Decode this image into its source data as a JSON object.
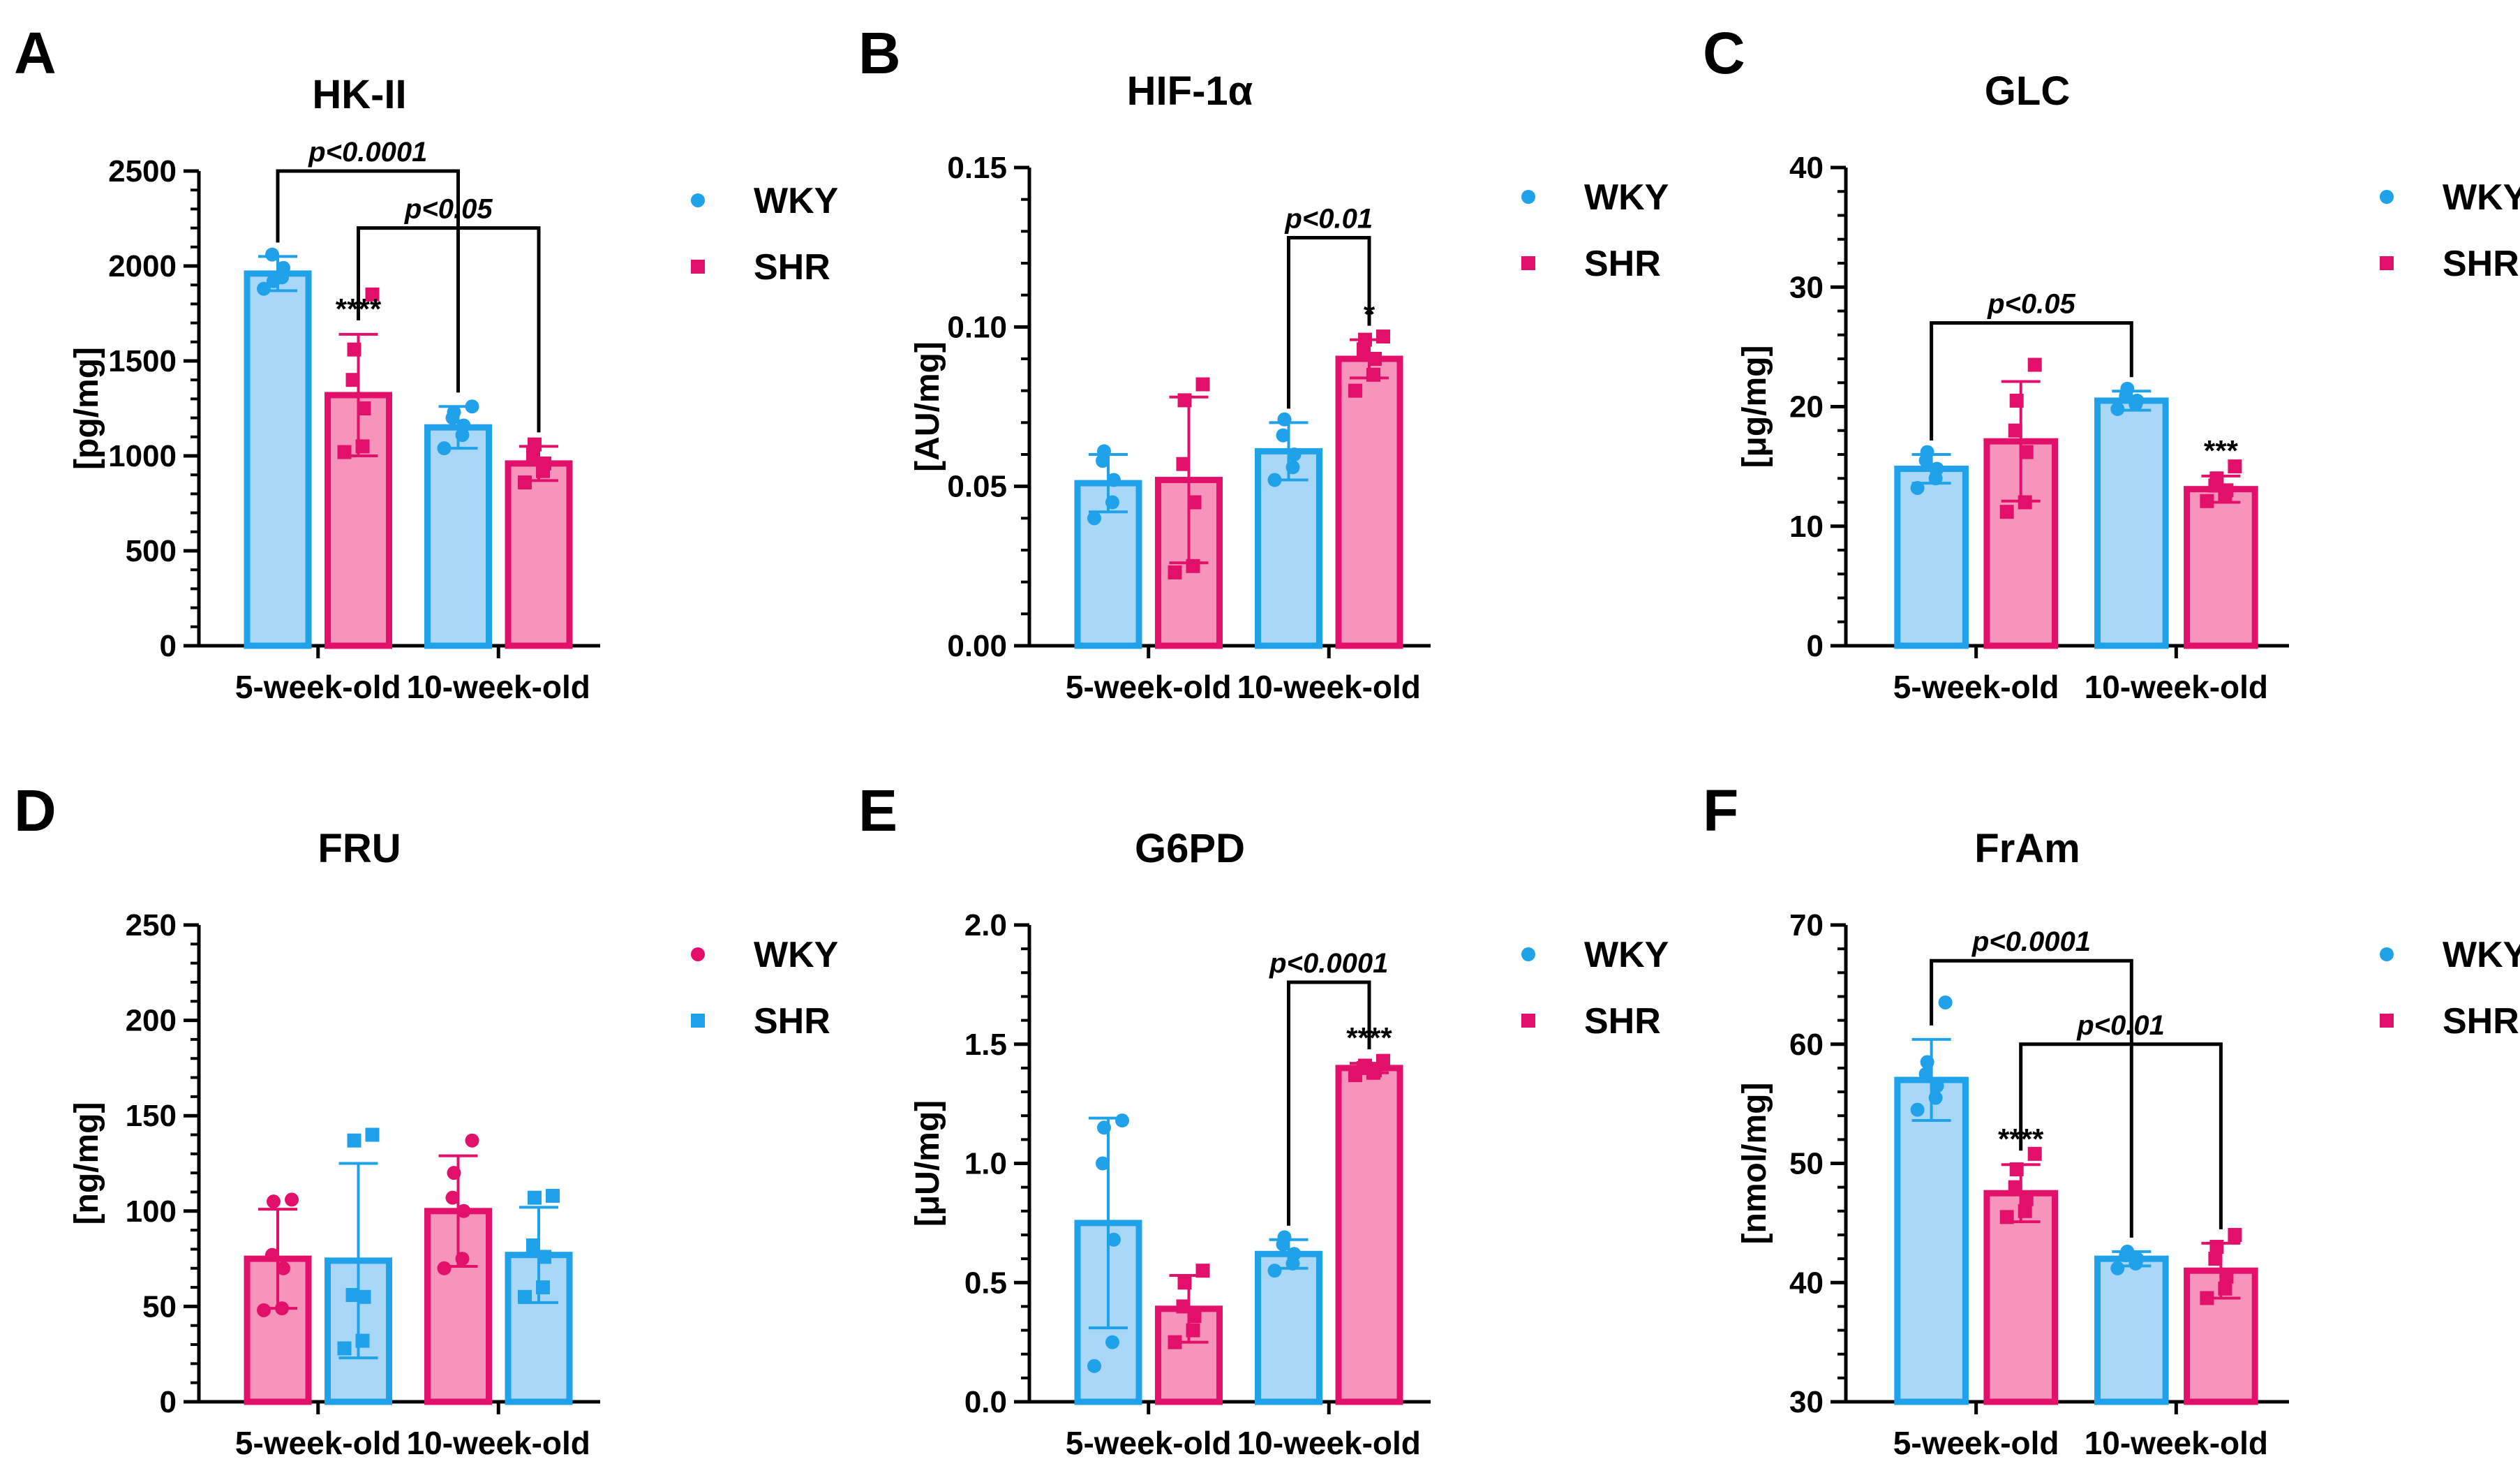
{
  "colors": {
    "wky_fill": "#a9d7f7",
    "wky_stroke": "#1fa2ea",
    "shr_fill": "#f794bb",
    "shr_stroke": "#e3106b"
  },
  "chart_data": [
    {
      "panel": "A",
      "type": "bar",
      "title": "HK-II",
      "ylabel": "[pg/mg]",
      "ylim": [
        0,
        2500
      ],
      "yticks": [
        "0",
        "500",
        "1000",
        "1500",
        "2000",
        "2500"
      ],
      "categories": [
        "5-week-old",
        "10-week-old"
      ],
      "legend": [
        "WKY",
        "SHR"
      ],
      "legend_position": "top-right",
      "series": [
        {
          "name": "WKY",
          "color": "blue",
          "marker": "circle",
          "values": [
            1960,
            1150
          ],
          "sd": [
            90,
            110
          ],
          "points": [
            [
              1880,
              1940,
              1990,
              2060,
              1920
            ],
            [
              1040,
              1110,
              1160,
              1200,
              1230,
              1260
            ]
          ]
        },
        {
          "name": "SHR",
          "color": "pink",
          "marker": "square",
          "values": [
            1320,
            960
          ],
          "sd": [
            320,
            90
          ],
          "points": [
            [
              1020,
              1050,
              1250,
              1400,
              1560,
              1850
            ],
            [
              860,
              920,
              960,
              1010,
              1060
            ]
          ]
        }
      ],
      "annotations": [
        {
          "type": "stars",
          "text": "****",
          "series": 1,
          "category": 0
        },
        {
          "type": "bracket",
          "text": "p<0.0001",
          "from": [
            0,
            0
          ],
          "to": [
            0,
            1
          ],
          "y": 2500
        },
        {
          "type": "bracket",
          "text": "p<0.05",
          "from": [
            1,
            0
          ],
          "to": [
            1,
            1
          ],
          "y": 2200
        }
      ]
    },
    {
      "panel": "B",
      "type": "bar",
      "title": "HIF-1α",
      "ylabel": "[AU/mg]",
      "ylim": [
        0,
        0.15
      ],
      "yticks": [
        "0.00",
        "0.05",
        "0.10",
        "0.15"
      ],
      "categories": [
        "5-week-old",
        "10-week-old"
      ],
      "legend": [
        "WKY",
        "SHR"
      ],
      "legend_position": "top-right",
      "series": [
        {
          "name": "WKY",
          "color": "blue",
          "marker": "circle",
          "values": [
            0.051,
            0.061
          ],
          "sd": [
            0.009,
            0.009
          ],
          "points": [
            [
              0.04,
              0.045,
              0.052,
              0.058,
              0.061
            ],
            [
              0.052,
              0.056,
              0.06,
              0.066,
              0.071
            ]
          ]
        },
        {
          "name": "SHR",
          "color": "pink",
          "marker": "square",
          "values": [
            0.052,
            0.09
          ],
          "sd": [
            0.026,
            0.006
          ],
          "points": [
            [
              0.023,
              0.025,
              0.045,
              0.057,
              0.077,
              0.082
            ],
            [
              0.08,
              0.085,
              0.09,
              0.093,
              0.096,
              0.097
            ]
          ]
        }
      ],
      "annotations": [
        {
          "type": "stars",
          "text": "*",
          "series": 1,
          "category": 1
        },
        {
          "type": "bracket",
          "text": "p<0.01",
          "from": [
            0,
            1
          ],
          "to": [
            1,
            1
          ],
          "y": 0.128
        }
      ]
    },
    {
      "panel": "C",
      "type": "bar",
      "title": "GLC",
      "ylabel": "[μg/mg]",
      "ylim": [
        0,
        40
      ],
      "yticks": [
        "0",
        "10",
        "20",
        "30",
        "40"
      ],
      "categories": [
        "5-week-old",
        "10-week-old"
      ],
      "legend": [
        "WKY",
        "SHR"
      ],
      "legend_position": "top-right",
      "series": [
        {
          "name": "WKY",
          "color": "blue",
          "marker": "circle",
          "values": [
            14.8,
            20.5
          ],
          "sd": [
            1.2,
            0.8
          ],
          "points": [
            [
              13.2,
              14.0,
              14.8,
              15.5,
              16.2
            ],
            [
              19.8,
              20.2,
              20.5,
              20.9,
              21.5
            ]
          ]
        },
        {
          "name": "SHR",
          "color": "pink",
          "marker": "square",
          "values": [
            17.1,
            13.1
          ],
          "sd": [
            5.0,
            1.1
          ],
          "points": [
            [
              11.2,
              12.0,
              16.2,
              18.0,
              20.5,
              23.5
            ],
            [
              12.1,
              12.6,
              13.0,
              13.4,
              14.0,
              15.0
            ]
          ]
        }
      ],
      "annotations": [
        {
          "type": "stars",
          "text": "***",
          "series": 1,
          "category": 1
        },
        {
          "type": "bracket",
          "text": "p<0.05",
          "from": [
            0,
            0
          ],
          "to": [
            0,
            1
          ],
          "y": 27
        }
      ]
    },
    {
      "panel": "D",
      "type": "bar",
      "title": "FRU",
      "ylabel": "[ng/mg]",
      "ylim": [
        0,
        250
      ],
      "yticks": [
        "0",
        "50",
        "100",
        "150",
        "200",
        "250"
      ],
      "categories": [
        "5-week-old",
        "10-week-old"
      ],
      "legend": [
        "WKY",
        "SHR"
      ],
      "legend_position": "top-right",
      "legend_colors": [
        "pink",
        "blue"
      ],
      "series": [
        {
          "name": "WKY",
          "color": "pink",
          "marker": "circle",
          "values": [
            75,
            100
          ],
          "sd": [
            26,
            29
          ],
          "points": [
            [
              48,
              49,
              70,
              77,
              105,
              106
            ],
            [
              70,
              75,
              100,
              107,
              120,
              137
            ]
          ]
        },
        {
          "name": "SHR",
          "color": "blue",
          "marker": "square",
          "values": [
            74,
            77
          ],
          "sd": [
            51,
            25
          ],
          "points": [
            [
              28,
              32,
              55,
              56,
              137,
              140
            ],
            [
              55,
              60,
              76,
              82,
              107,
              108
            ]
          ]
        }
      ],
      "annotations": []
    },
    {
      "panel": "E",
      "type": "bar",
      "title": "G6PD",
      "ylabel": "[μU/mg]",
      "ylim": [
        0,
        2.0
      ],
      "yticks": [
        "0.0",
        "0.5",
        "1.0",
        "1.5",
        "2.0"
      ],
      "categories": [
        "5-week-old",
        "10-week-old"
      ],
      "legend": [
        "WKY",
        "SHR"
      ],
      "legend_position": "top-right",
      "series": [
        {
          "name": "WKY",
          "color": "blue",
          "marker": "circle",
          "values": [
            0.75,
            0.62
          ],
          "sd": [
            0.44,
            0.06
          ],
          "points": [
            [
              0.15,
              0.25,
              0.68,
              1.0,
              1.15,
              1.18
            ],
            [
              0.55,
              0.58,
              0.62,
              0.66,
              0.69
            ]
          ]
        },
        {
          "name": "SHR",
          "color": "pink",
          "marker": "square",
          "values": [
            0.39,
            1.4
          ],
          "sd": [
            0.14,
            0.02
          ],
          "points": [
            [
              0.25,
              0.3,
              0.36,
              0.4,
              0.5,
              0.55
            ],
            [
              1.37,
              1.38,
              1.39,
              1.4,
              1.41,
              1.43
            ]
          ]
        }
      ],
      "annotations": [
        {
          "type": "stars",
          "text": "****",
          "series": 1,
          "category": 1
        },
        {
          "type": "bracket",
          "text": "p<0.0001",
          "from": [
            0,
            1
          ],
          "to": [
            1,
            1
          ],
          "y": 1.76
        }
      ]
    },
    {
      "panel": "F",
      "type": "bar",
      "title": "FrAm",
      "ylabel": "[nmol/mg]",
      "ylim": [
        30,
        70
      ],
      "yticks": [
        "30",
        "40",
        "50",
        "60",
        "70"
      ],
      "categories": [
        "5-week-old",
        "10-week-old"
      ],
      "legend": [
        "WKY",
        "SHR"
      ],
      "legend_position": "top-right",
      "series": [
        {
          "name": "WKY",
          "color": "blue",
          "marker": "circle",
          "values": [
            57.0,
            42.0
          ],
          "sd": [
            3.4,
            0.6
          ],
          "points": [
            [
              54.5,
              55.5,
              56.5,
              57.5,
              58.5,
              63.5
            ],
            [
              41.2,
              41.6,
              42.0,
              42.3,
              42.6
            ]
          ]
        },
        {
          "name": "SHR",
          "color": "pink",
          "marker": "square",
          "values": [
            47.5,
            41.0
          ],
          "sd": [
            2.4,
            2.3
          ],
          "points": [
            [
              45.5,
              46.0,
              47.0,
              48.0,
              49.5,
              50.8
            ],
            [
              38.7,
              39.5,
              40.5,
              42.0,
              43.0,
              44.0
            ]
          ]
        }
      ],
      "annotations": [
        {
          "type": "stars",
          "text": "****",
          "series": 1,
          "category": 0
        },
        {
          "type": "bracket",
          "text": "p<0.0001",
          "from": [
            0,
            0
          ],
          "to": [
            0,
            1
          ],
          "y": 67
        },
        {
          "type": "bracket",
          "text": "p<0.01",
          "from": [
            1,
            0
          ],
          "to": [
            1,
            1
          ],
          "y": 60
        }
      ]
    }
  ]
}
